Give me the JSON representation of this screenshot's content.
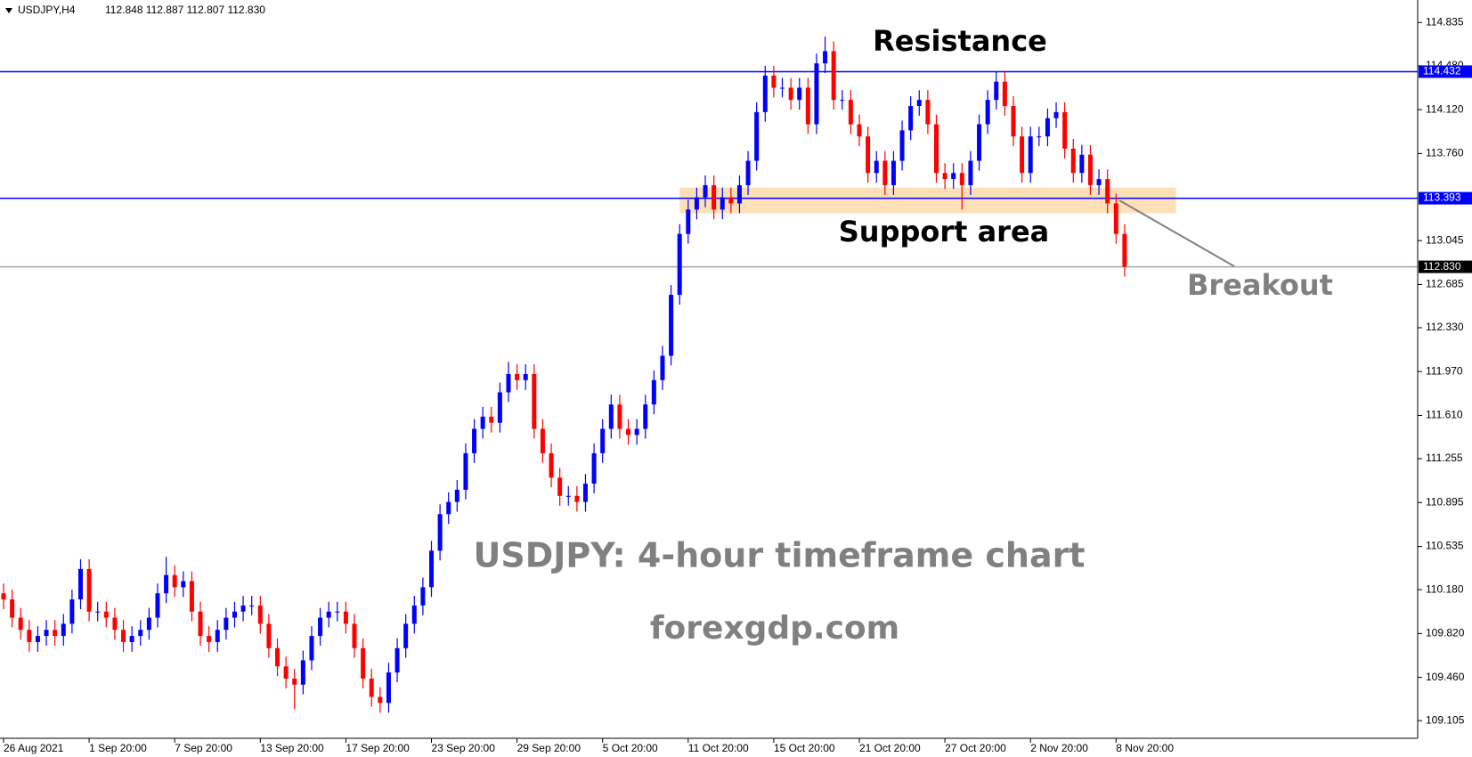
{
  "chart_data": {
    "type": "candlestick",
    "symbol": "USDJPY,H4",
    "quote": "112.848 112.887 112.807 112.830",
    "up_color": "#0000ff",
    "down_color": "#ff0000",
    "ylim": [
      108.96,
      115.02
    ],
    "yticks": [
      114.835,
      {
        "value": 114.48,
        "label": "114.480"
      },
      {
        "value": 114.12,
        "label": "114.120"
      },
      {
        "value": 113.76,
        "label": "113.760"
      },
      113.045,
      112.685,
      {
        "value": 112.33,
        "label": "112.330"
      },
      {
        "value": 111.97,
        "label": "111.970"
      },
      {
        "value": 111.61,
        "label": "111.610"
      },
      111.255,
      110.895,
      110.535,
      {
        "value": 110.18,
        "label": "110.180"
      },
      {
        "value": 109.82,
        "label": "109.820"
      },
      {
        "value": 109.46,
        "label": "109.460"
      },
      109.105
    ],
    "xticks": [
      {
        "value": 0,
        "label": "26 Aug 2021"
      },
      {
        "value": 10,
        "label": "1 Sep 20:00"
      },
      {
        "value": 20,
        "label": "7 Sep 20:00"
      },
      {
        "value": 30,
        "label": "13 Sep 20:00"
      },
      {
        "value": 40,
        "label": "17 Sep 20:00"
      },
      {
        "value": 50,
        "label": "23 Sep 20:00"
      },
      {
        "value": 60,
        "label": "29 Sep 20:00"
      },
      {
        "value": 70,
        "label": "5 Oct 20:00"
      },
      {
        "value": 80,
        "label": "11 Oct 20:00"
      },
      {
        "value": 90,
        "label": "15 Oct 20:00"
      },
      {
        "value": 100,
        "label": "21 Oct 20:00"
      },
      {
        "value": 110,
        "label": "27 Oct 20:00"
      },
      {
        "value": 120,
        "label": "2 Nov 20:00"
      },
      {
        "value": 130,
        "label": "8 Nov 20:00"
      }
    ],
    "open": [
      110.15,
      110.1,
      109.95,
      109.85,
      109.75,
      109.8,
      109.85,
      109.8,
      109.9,
      110.1,
      110.35,
      110.0,
      110.0,
      109.95,
      109.85,
      109.75,
      109.8,
      109.85,
      109.95,
      110.15,
      110.3,
      110.2,
      110.25,
      110.0,
      109.8,
      109.75,
      109.85,
      109.95,
      110.0,
      110.05,
      110.05,
      109.9,
      109.7,
      109.55,
      109.45,
      109.4,
      109.6,
      109.8,
      109.95,
      110.0,
      110.0,
      109.9,
      109.7,
      109.45,
      109.3,
      109.25,
      109.5,
      109.7,
      109.9,
      110.05,
      110.2,
      110.5,
      110.8,
      110.9,
      111.0,
      111.3,
      111.5,
      111.6,
      111.55,
      111.8,
      111.95,
      111.9,
      111.95,
      111.5,
      111.3,
      111.1,
      110.95,
      110.95,
      110.9,
      111.05,
      111.3,
      111.5,
      111.7,
      111.5,
      111.45,
      111.5,
      111.7,
      111.9,
      112.1,
      112.6,
      113.1,
      113.3,
      113.4,
      113.5,
      113.3,
      113.4,
      113.35,
      113.5,
      113.7,
      114.1,
      114.4,
      114.3,
      114.3,
      114.2,
      114.3,
      114.0,
      114.5,
      114.6,
      114.2,
      114.2,
      114.0,
      113.9,
      113.6,
      113.7,
      113.5,
      113.7,
      113.95,
      114.15,
      114.2,
      114.0,
      113.6,
      113.55,
      113.6,
      113.5,
      113.7,
      114.0,
      114.2,
      114.35,
      114.15,
      113.9,
      113.6,
      113.9,
      113.9,
      114.05,
      114.1,
      113.8,
      113.6,
      113.75,
      113.5,
      113.55,
      113.35,
      113.1
    ],
    "high": [
      110.23,
      110.18,
      110.03,
      109.93,
      109.88,
      109.93,
      109.93,
      109.98,
      110.18,
      110.43,
      110.43,
      110.08,
      110.08,
      110.03,
      109.93,
      109.88,
      109.93,
      110.03,
      110.23,
      110.45,
      110.38,
      110.33,
      110.33,
      110.08,
      109.88,
      109.93,
      110.03,
      110.08,
      110.13,
      110.13,
      110.13,
      109.98,
      109.78,
      109.63,
      109.53,
      109.68,
      109.88,
      110.03,
      110.08,
      110.08,
      110.08,
      109.98,
      109.78,
      109.53,
      109.38,
      109.58,
      109.78,
      109.98,
      110.13,
      110.28,
      110.58,
      110.88,
      110.98,
      111.08,
      111.38,
      111.58,
      111.68,
      111.68,
      111.88,
      112.05,
      112.03,
      112.03,
      112.03,
      111.58,
      111.38,
      111.18,
      111.03,
      111.03,
      111.13,
      111.38,
      111.58,
      111.78,
      111.78,
      111.58,
      111.58,
      111.78,
      111.98,
      112.18,
      112.68,
      113.18,
      113.38,
      113.48,
      113.58,
      113.58,
      113.48,
      113.48,
      113.58,
      113.78,
      114.18,
      114.48,
      114.48,
      114.38,
      114.38,
      114.38,
      114.38,
      114.58,
      114.72,
      114.68,
      114.28,
      114.28,
      114.08,
      113.98,
      113.78,
      113.78,
      113.78,
      114.03,
      114.23,
      114.28,
      114.28,
      114.08,
      113.68,
      113.68,
      113.68,
      113.78,
      114.08,
      114.28,
      114.43,
      114.43,
      114.23,
      113.98,
      113.98,
      113.98,
      114.13,
      114.18,
      114.18,
      113.88,
      113.83,
      113.83,
      113.63,
      113.63,
      113.43,
      113.18
    ],
    "low": [
      110.02,
      109.87,
      109.77,
      109.67,
      109.67,
      109.72,
      109.72,
      109.72,
      109.82,
      110.02,
      109.92,
      109.92,
      109.87,
      109.77,
      109.67,
      109.67,
      109.72,
      109.77,
      109.87,
      110.07,
      110.12,
      110.12,
      109.92,
      109.72,
      109.67,
      109.67,
      109.77,
      109.87,
      109.92,
      109.97,
      109.82,
      109.62,
      109.47,
      109.37,
      109.2,
      109.32,
      109.52,
      109.72,
      109.87,
      109.92,
      109.82,
      109.62,
      109.37,
      109.22,
      109.17,
      109.17,
      109.42,
      109.62,
      109.82,
      109.97,
      110.12,
      110.42,
      110.72,
      110.82,
      110.92,
      111.22,
      111.42,
      111.47,
      111.47,
      111.72,
      111.82,
      111.82,
      111.42,
      111.22,
      111.02,
      110.87,
      110.87,
      110.82,
      110.82,
      110.97,
      111.22,
      111.42,
      111.42,
      111.37,
      111.37,
      111.42,
      111.62,
      111.82,
      112.02,
      112.52,
      113.02,
      113.22,
      113.32,
      113.22,
      113.22,
      113.27,
      113.27,
      113.42,
      113.62,
      114.02,
      114.22,
      114.22,
      114.12,
      114.12,
      113.92,
      113.92,
      114.42,
      114.12,
      114.12,
      113.92,
      113.82,
      113.52,
      113.52,
      113.42,
      113.42,
      113.62,
      113.87,
      114.07,
      113.92,
      113.52,
      113.47,
      113.47,
      113.3,
      113.42,
      113.62,
      113.92,
      114.12,
      114.07,
      113.82,
      113.52,
      113.52,
      113.82,
      113.82,
      113.97,
      113.72,
      113.52,
      113.52,
      113.42,
      113.42,
      113.27,
      113.02,
      112.75
    ],
    "close": [
      110.1,
      109.95,
      109.85,
      109.75,
      109.8,
      109.85,
      109.8,
      109.9,
      110.1,
      110.35,
      110.0,
      110.0,
      109.95,
      109.85,
      109.75,
      109.8,
      109.85,
      109.95,
      110.15,
      110.3,
      110.2,
      110.25,
      110.0,
      109.8,
      109.75,
      109.85,
      109.95,
      110.0,
      110.05,
      110.05,
      109.9,
      109.7,
      109.55,
      109.45,
      109.4,
      109.6,
      109.8,
      109.95,
      110.0,
      110.0,
      109.9,
      109.7,
      109.45,
      109.3,
      109.25,
      109.5,
      109.7,
      109.9,
      110.05,
      110.2,
      110.5,
      110.8,
      110.9,
      111.0,
      111.3,
      111.5,
      111.6,
      111.55,
      111.8,
      111.95,
      111.9,
      111.95,
      111.5,
      111.3,
      111.1,
      110.95,
      110.95,
      110.9,
      111.05,
      111.3,
      111.5,
      111.7,
      111.5,
      111.45,
      111.5,
      111.7,
      111.9,
      112.1,
      112.6,
      113.1,
      113.3,
      113.4,
      113.5,
      113.3,
      113.4,
      113.35,
      113.5,
      113.7,
      114.1,
      114.4,
      114.3,
      114.3,
      114.2,
      114.3,
      114.0,
      114.5,
      114.6,
      114.2,
      114.2,
      114.0,
      113.9,
      113.6,
      113.7,
      113.5,
      113.7,
      113.95,
      114.15,
      114.2,
      114.0,
      113.6,
      113.55,
      113.6,
      113.5,
      113.7,
      114.0,
      114.2,
      114.35,
      114.15,
      113.9,
      113.6,
      113.9,
      113.9,
      114.05,
      114.1,
      113.8,
      113.6,
      113.75,
      113.5,
      113.55,
      113.35,
      113.1,
      112.83
    ],
    "levels": [
      {
        "value": 114.432,
        "label": "114.432",
        "color": "#0000ff"
      },
      {
        "value": 113.393,
        "label": "113.393",
        "color": "#0000ff"
      },
      {
        "value": 112.83,
        "label": "112.830",
        "color": "#9aa6b2"
      }
    ],
    "zone": {
      "from": 113.27,
      "to": 113.48,
      "start": 79,
      "end": 137,
      "color": "#fde0b8"
    },
    "annotations": [
      "Resistance",
      "Support area",
      "Breakout",
      "USDJPY: 4-hour timeframe chart",
      "forexgdp.com"
    ]
  }
}
